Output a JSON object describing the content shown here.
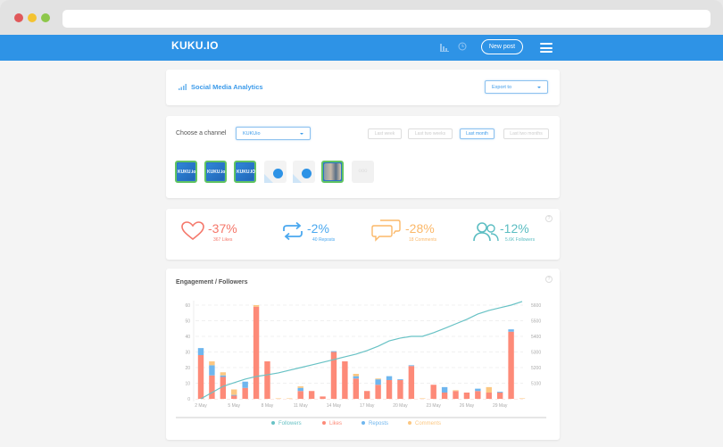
{
  "browser": {
    "url": ""
  },
  "navbar": {
    "logo": "KUKU.IO",
    "new_post_label": "New post",
    "icons": [
      "analytics-icon",
      "clock-icon",
      "hamburger-menu-icon"
    ]
  },
  "header_card": {
    "title": "Social Media Analytics",
    "export": {
      "value": "Export to"
    }
  },
  "channel_card": {
    "label": "Choose a channel",
    "channel_select": {
      "value": "KUKUio"
    },
    "periods": [
      {
        "label": "Last week",
        "active": false
      },
      {
        "label": "Last two weeks",
        "active": false
      },
      {
        "label": "Last month",
        "active": true
      },
      {
        "label": "Last two months",
        "active": false
      }
    ],
    "accounts": [
      {
        "name": "KUKU.io",
        "network": "twitter",
        "selected": true
      },
      {
        "name": "KUKU.io",
        "network": "facebook",
        "selected": true
      },
      {
        "name": "KUKU.IO",
        "network": "vk",
        "selected": true
      },
      {
        "name": "",
        "network": "pinterest",
        "selected": false
      },
      {
        "name": "",
        "network": "pinterest",
        "selected": false
      },
      {
        "name": "",
        "network": "instagram",
        "selected": true
      },
      {
        "name": "more",
        "network": "",
        "selected": false
      }
    ],
    "more_label": "ooo"
  },
  "stats": [
    {
      "icon": "heart-icon",
      "pct": "-37%",
      "sub": "367 Likes",
      "color": "#f5776a"
    },
    {
      "icon": "repost-icon",
      "pct": "-2%",
      "sub": "40 Reposts",
      "color": "#4aa8ef"
    },
    {
      "icon": "comments-icon",
      "pct": "-28%",
      "sub": "18 Comments",
      "color": "#fbb869"
    },
    {
      "icon": "followers-icon",
      "pct": "-12%",
      "sub": "5.6K Followers",
      "color": "#5bbdc2"
    }
  ],
  "help_label": "?",
  "chart_card": {
    "title": "Engagement / Followers"
  },
  "chart_data": {
    "type": "bar",
    "title": "Engagement / Followers",
    "xlabel": "",
    "ylabel": "",
    "x_tick_labels": [
      "2 May",
      "5 May",
      "8 May",
      "11 May",
      "14 May",
      "17 May",
      "20 May",
      "23 May",
      "26 May",
      "29 May"
    ],
    "categories": [
      "2 May",
      "3 May",
      "4 May",
      "5 May",
      "6 May",
      "7 May",
      "8 May",
      "9 May",
      "10 May",
      "11 May",
      "12 May",
      "13 May",
      "14 May",
      "15 May",
      "16 May",
      "17 May",
      "18 May",
      "19 May",
      "20 May",
      "21 May",
      "22 May",
      "23 May",
      "24 May",
      "25 May",
      "26 May",
      "27 May",
      "28 May",
      "29 May",
      "30 May",
      "31 May"
    ],
    "ylim": [
      0,
      60
    ],
    "y_ticks": [
      0,
      10,
      20,
      30,
      40,
      50,
      60
    ],
    "y2lim": [
      5000,
      5600
    ],
    "y2_ticks": [
      5100,
      5200,
      5300,
      5400,
      5500,
      5600
    ],
    "stacked": true,
    "series": [
      {
        "name": "Likes",
        "type": "bar",
        "color": "#fd8a78",
        "values": [
          28,
          15,
          14,
          2,
          7,
          59,
          24,
          0,
          0,
          5,
          5,
          1.5,
          30,
          24,
          13,
          5,
          9,
          12,
          12,
          21,
          0,
          9,
          4,
          5,
          4,
          5,
          4,
          4,
          43,
          0
        ]
      },
      {
        "name": "Reposts",
        "type": "bar",
        "color": "#6fb6ee",
        "values": [
          4.5,
          6.5,
          1,
          0.5,
          4,
          0,
          0,
          0,
          0,
          2,
          0,
          0,
          0.5,
          0,
          1.5,
          0,
          3.5,
          2.5,
          0.5,
          0.5,
          0,
          0,
          3.5,
          0,
          0,
          1.5,
          0,
          0.5,
          1.5,
          0
        ]
      },
      {
        "name": "Comments",
        "type": "bar",
        "color": "#fcc781",
        "values": [
          0,
          2.5,
          2,
          3.5,
          0,
          1,
          0,
          0.3,
          0.3,
          1,
          0,
          0,
          0,
          0,
          1.5,
          0,
          0.5,
          0,
          0,
          0,
          0.3,
          0,
          0,
          0.5,
          0,
          0,
          3.5,
          0,
          0,
          0.3
        ]
      },
      {
        "name": "Followers",
        "type": "line",
        "axis": "right",
        "color": "#68c2c5",
        "values": [
          5000,
          5040,
          5080,
          5103,
          5126,
          5143,
          5154,
          5166,
          5183,
          5200,
          5217,
          5234,
          5251,
          5269,
          5286,
          5309,
          5337,
          5371,
          5389,
          5400,
          5400,
          5423,
          5451,
          5480,
          5509,
          5543,
          5566,
          5583,
          5600,
          5623
        ]
      }
    ],
    "legend": [
      "Followers",
      "Likes",
      "Reposts",
      "Comments"
    ],
    "legend_position": "bottom",
    "grid": true
  }
}
